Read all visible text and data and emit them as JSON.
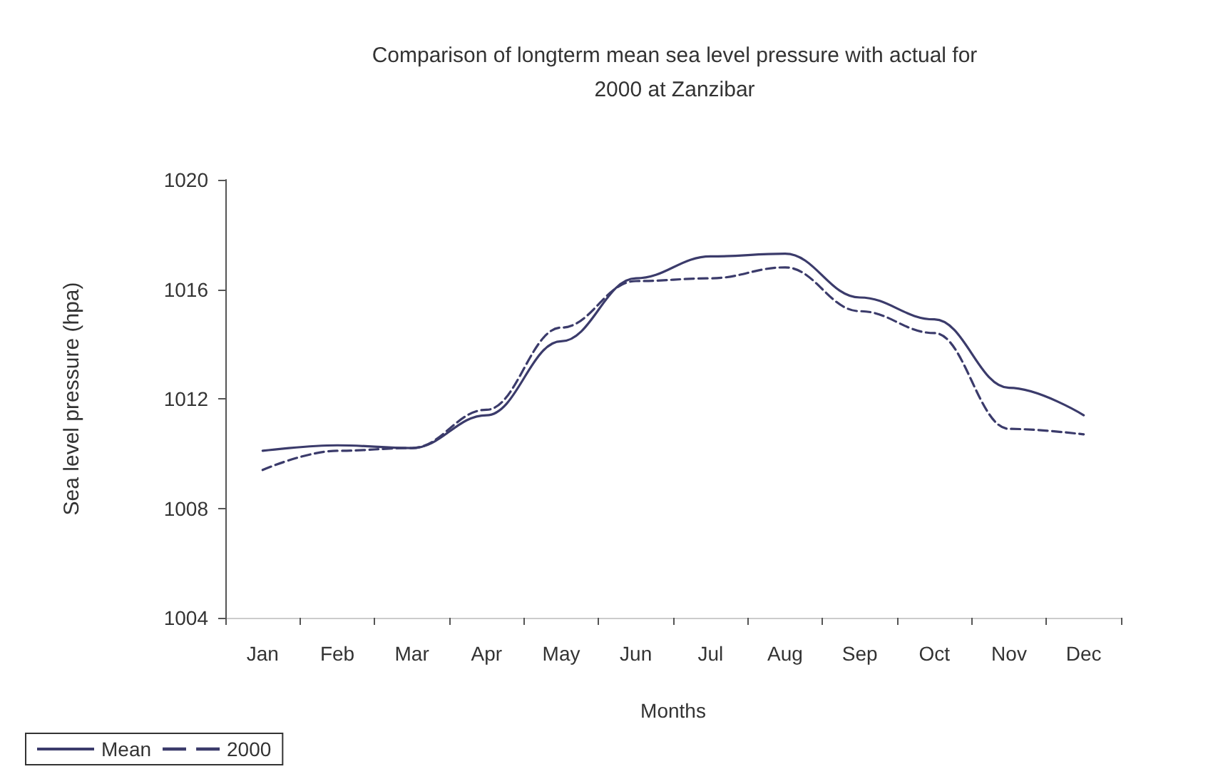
{
  "chart_data": {
    "type": "line",
    "title": "Comparison of longterm mean sea level pressure with actual for\n2000 at Zanzibar",
    "xlabel": "Months",
    "ylabel": "Sea level pressure (hpa)",
    "categories": [
      "Jan",
      "Feb",
      "Mar",
      "Apr",
      "May",
      "Jun",
      "Jul",
      "Aug",
      "Sep",
      "Oct",
      "Nov",
      "Dec"
    ],
    "series": [
      {
        "name": "Mean",
        "color": "#3b3b6b",
        "line_style": "solid",
        "values": [
          1010.1,
          1010.3,
          1010.2,
          1011.4,
          1014.1,
          1016.4,
          1017.2,
          1017.3,
          1015.7,
          1014.9,
          1012.4,
          1011.4
        ]
      },
      {
        "name": "2000",
        "color": "#3b3b6b",
        "line_style": "dashed",
        "values": [
          1009.4,
          1010.1,
          1010.2,
          1011.6,
          1014.6,
          1016.3,
          1016.4,
          1016.8,
          1015.2,
          1014.4,
          1010.9,
          1010.7
        ]
      }
    ],
    "ylim": [
      1004,
      1020
    ],
    "yticks": [
      1004,
      1008,
      1012,
      1016,
      1020
    ],
    "grid": false,
    "legend": "bottom left",
    "marker": "none"
  }
}
